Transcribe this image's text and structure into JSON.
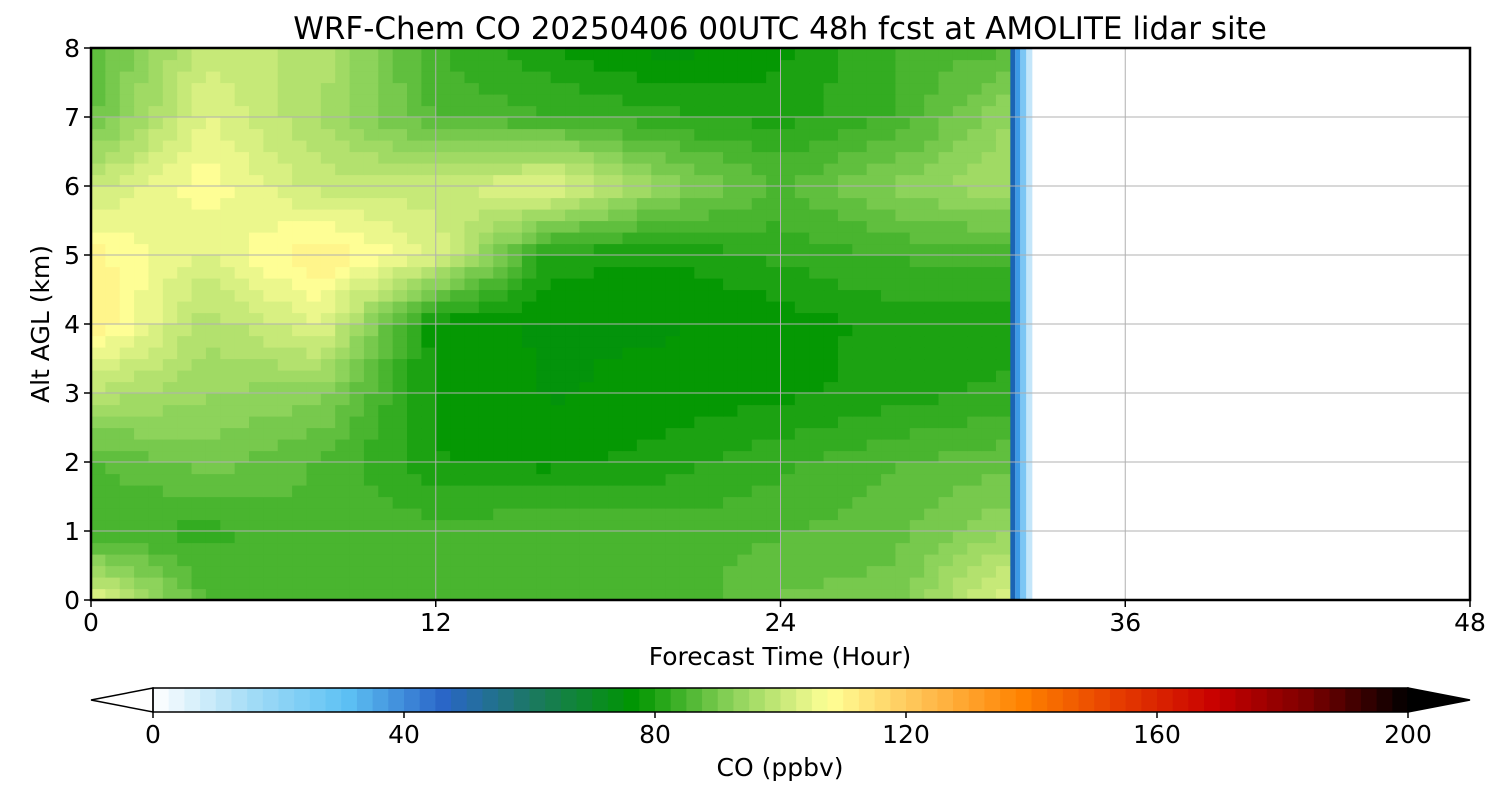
{
  "chart_data": {
    "type": "heatmap",
    "title": "WRF-Chem CO  20250406 00UTC 48h fcst at AMOLITE lidar site",
    "xlabel": "Forecast Time (Hour)",
    "ylabel": "Alt AGL (km)",
    "xlim": [
      0,
      48
    ],
    "ylim": [
      0,
      8
    ],
    "x_ticks": [
      "0",
      "12",
      "24",
      "36",
      "48"
    ],
    "y_ticks": [
      "0",
      "1",
      "2",
      "3",
      "4",
      "5",
      "6",
      "7",
      "8"
    ],
    "grid": true,
    "data_end_hour": 32,
    "x": [
      0,
      4,
      8,
      12,
      16,
      20,
      24,
      28,
      32
    ],
    "y": [
      0,
      1,
      2,
      3,
      4,
      5,
      6,
      7,
      8
    ],
    "values": [
      [
        104,
        86,
        84,
        84,
        84,
        84,
        89,
        90,
        104
      ],
      [
        84,
        83,
        86,
        85,
        86,
        85,
        86,
        88,
        94
      ],
      [
        86,
        90,
        86,
        79,
        78,
        80,
        83,
        86,
        88
      ],
      [
        98,
        94,
        92,
        78,
        76,
        77,
        78,
        80,
        82
      ],
      [
        112,
        97,
        104,
        77,
        76,
        76,
        77,
        80,
        80
      ],
      [
        110,
        103,
        112,
        103,
        80,
        79,
        82,
        84,
        85
      ],
      [
        100,
        108,
        100,
        100,
        105,
        93,
        86,
        92,
        96
      ],
      [
        88,
        104,
        96,
        86,
        84,
        82,
        80,
        84,
        94
      ],
      [
        86,
        100,
        98,
        84,
        79,
        75,
        78,
        84,
        86
      ]
    ],
    "colorbar": {
      "label": "CO  (ppbv)",
      "min": 0,
      "max": 200,
      "ticks": [
        "0",
        "40",
        "80",
        "120",
        "160",
        "200"
      ],
      "extend": "both",
      "colors": [
        "#ffffff",
        "#a4dcf6",
        "#5ec2f4",
        "#2a66c8",
        "#1a7a5a",
        "#009600",
        "#8cd25a",
        "#ffff96",
        "#ffbe50",
        "#ff8200",
        "#e63c00",
        "#c80000",
        "#780000",
        "#000000"
      ]
    }
  }
}
